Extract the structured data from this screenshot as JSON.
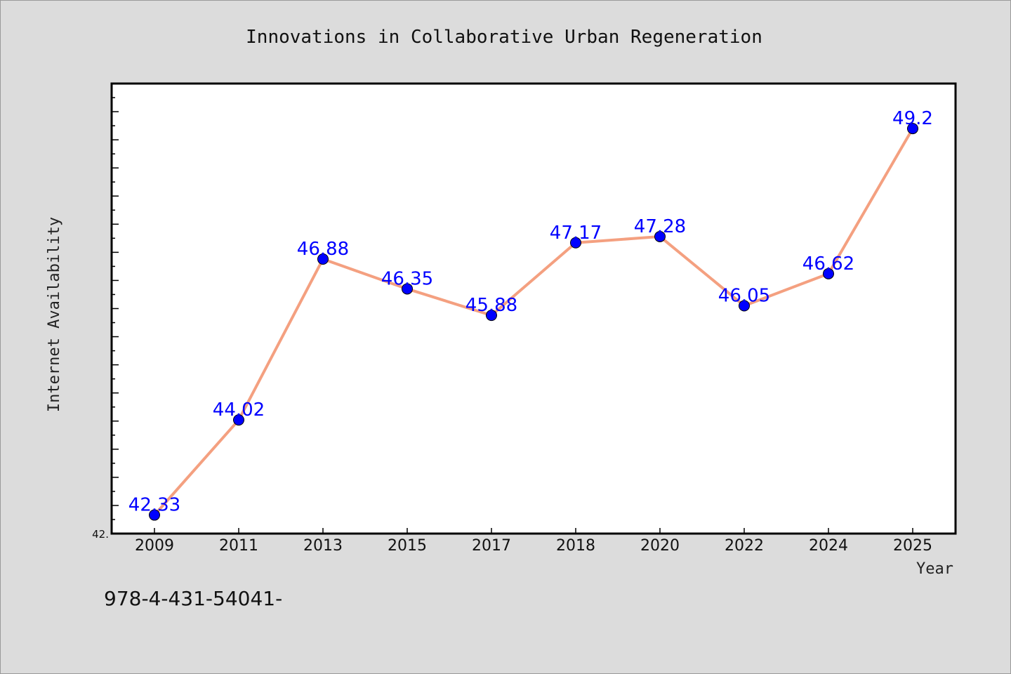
{
  "chart_data": {
    "type": "line",
    "title": "Innovations in Collaborative Urban Regeneration",
    "xlabel": "Year",
    "ylabel": "Internet Availability",
    "categories": [
      "2009",
      "2011",
      "2013",
      "2015",
      "2017",
      "2018",
      "2020",
      "2022",
      "2024",
      "2025"
    ],
    "series": [
      {
        "values": [
          42.33,
          44.02,
          46.88,
          46.35,
          45.88,
          47.17,
          47.28,
          46.05,
          46.62,
          49.2
        ],
        "data_labels": [
          "42.33",
          "44.02",
          "46.88",
          "46.35",
          "45.88",
          "47.17",
          "47.28",
          "46.05",
          "46.62",
          "49.2"
        ],
        "line_color": "#f4a080",
        "marker_color": "#0000ff"
      }
    ],
    "ylim": [
      42.0,
      50.0
    ],
    "ytick_labels": [
      "42."
    ],
    "grid": false,
    "legend": "none"
  },
  "footer_text": "978-4-431-54041-"
}
